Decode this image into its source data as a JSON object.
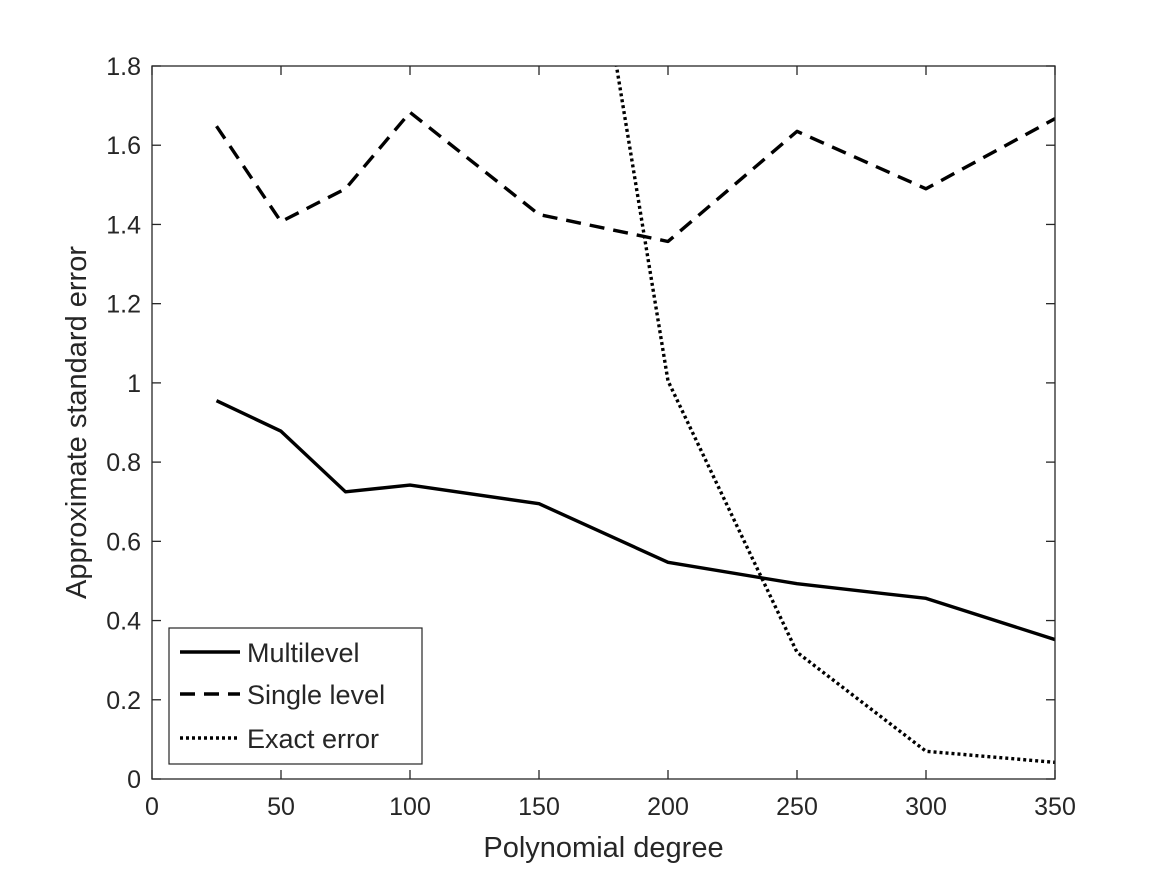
{
  "chart_data": {
    "type": "line",
    "title": "",
    "xlabel": "Polynomial degree",
    "ylabel": "Approximate standard error",
    "xlim": [
      0,
      350
    ],
    "ylim": [
      0,
      1.8
    ],
    "xticks": [
      0,
      50,
      100,
      150,
      200,
      250,
      300,
      350
    ],
    "xtick_labels": [
      "0",
      "50",
      "100",
      "150",
      "200",
      "250",
      "300",
      "350"
    ],
    "yticks": [
      0,
      0.2,
      0.4,
      0.6,
      0.8,
      1,
      1.2,
      1.4,
      1.6,
      1.8
    ],
    "ytick_labels": [
      "0",
      "0.2",
      "0.4",
      "0.6",
      "0.8",
      "1",
      "1.2",
      "1.4",
      "1.6",
      "1.8"
    ],
    "grid": false,
    "legend_position": "bottom-left",
    "series": [
      {
        "name": "Multilevel",
        "style": "solid",
        "color": "#000000",
        "x": [
          25,
          50,
          75,
          100,
          150,
          200,
          250,
          300,
          350
        ],
        "y": [
          0.955,
          0.878,
          0.725,
          0.742,
          0.695,
          0.547,
          0.493,
          0.456,
          0.352
        ]
      },
      {
        "name": "Single level",
        "style": "dashed",
        "color": "#000000",
        "x": [
          25,
          50,
          75,
          100,
          150,
          200,
          250,
          300,
          350
        ],
        "y": [
          1.648,
          1.407,
          1.49,
          1.683,
          1.425,
          1.357,
          1.635,
          1.49,
          1.667
        ]
      },
      {
        "name": "Exact error",
        "style": "dotted",
        "color": "#000000",
        "x": [
          175,
          200,
          250,
          300,
          350
        ],
        "y": [
          2.0,
          1.005,
          0.32,
          0.07,
          0.042
        ]
      }
    ]
  }
}
